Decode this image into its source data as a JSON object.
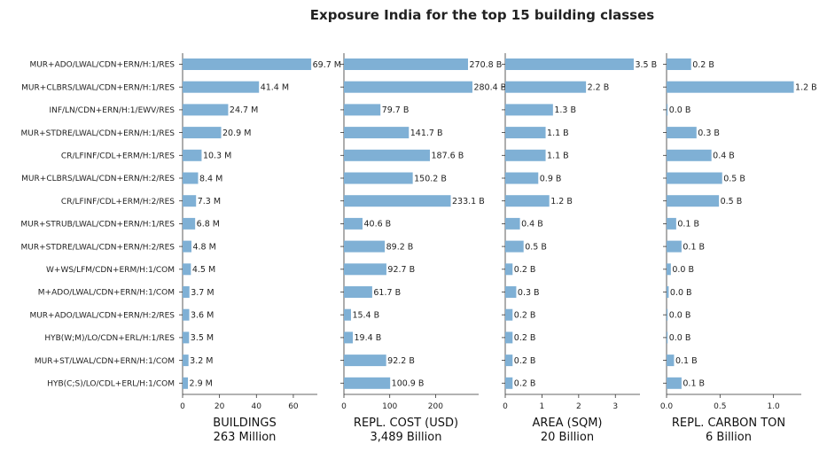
{
  "chart_data": {
    "type": "bar",
    "orientation": "horizontal",
    "title": "Exposure India for the top 15 building classes",
    "categories": [
      "MUR+ADO/LWAL/CDN+ERN/H:1/RES",
      "MUR+CLBRS/LWAL/CDN+ERN/H:1/RES",
      "INF/LN/CDN+ERN/H:1/EWV/RES",
      "MUR+STDRE/LWAL/CDN+ERN/H:1/RES",
      "CR/LFINF/CDL+ERM/H:1/RES",
      "MUR+CLBRS/LWAL/CDN+ERN/H:2/RES",
      "CR/LFINF/CDL+ERM/H:2/RES",
      "MUR+STRUB/LWAL/CDN+ERN/H:1/RES",
      "MUR+STDRE/LWAL/CDN+ERN/H:2/RES",
      "W+WS/LFM/CDN+ERM/H:1/COM",
      "M+ADO/LWAL/CDN+ERN/H:1/COM",
      "MUR+ADO/LWAL/CDN+ERN/H:2/RES",
      "HYB(W;M)/LO/CDN+ERL/H:1/RES",
      "MUR+ST/LWAL/CDN+ERN/H:1/COM",
      "HYB(C;S)/LO/CDL+ERL/H:1/COM"
    ],
    "grid": false,
    "legend": "none",
    "panels": [
      {
        "xlabel": "BUILDINGS",
        "total": "263 Million",
        "xlim": [
          0,
          73
        ],
        "ticks": [
          0,
          20,
          40,
          60
        ],
        "tick_labels": [
          "0",
          "20",
          "40",
          "60"
        ],
        "values": [
          69.7,
          41.4,
          24.7,
          20.9,
          10.3,
          8.4,
          7.3,
          6.8,
          4.8,
          4.5,
          3.7,
          3.6,
          3.5,
          3.2,
          2.9
        ],
        "labels": [
          "69.7 M",
          "41.4 M",
          "24.7 M",
          "20.9 M",
          "10.3 M",
          "8.4 M",
          "7.3 M",
          "6.8 M",
          "4.8 M",
          "4.5 M",
          "3.7 M",
          "3.6 M",
          "3.5 M",
          "3.2 M",
          "2.9 M"
        ]
      },
      {
        "xlabel": "REPL. COST (USD)",
        "total": "3,489 Billion",
        "xlim": [
          0,
          294
        ],
        "ticks": [
          0,
          100,
          200
        ],
        "tick_labels": [
          "0",
          "100",
          "200"
        ],
        "values": [
          270.8,
          280.4,
          79.7,
          141.7,
          187.6,
          150.2,
          233.1,
          40.6,
          89.2,
          92.7,
          61.7,
          15.4,
          19.4,
          92.2,
          100.9
        ],
        "labels": [
          "270.8 B",
          "280.4 B",
          "79.7 B",
          "141.7 B",
          "187.6 B",
          "150.2 B",
          "233.1 B",
          "40.6 B",
          "89.2 B",
          "92.7 B",
          "61.7 B",
          "15.4 B",
          "19.4 B",
          "92.2 B",
          "100.9 B"
        ]
      },
      {
        "xlabel": "AREA (SQM)",
        "total": "20 Billion",
        "xlim": [
          0,
          3.67
        ],
        "ticks": [
          0,
          1,
          2,
          3
        ],
        "tick_labels": [
          "0",
          "1",
          "2",
          "3"
        ],
        "values": [
          3.5,
          2.2,
          1.3,
          1.1,
          1.1,
          0.9,
          1.2,
          0.4,
          0.5,
          0.2,
          0.3,
          0.2,
          0.2,
          0.2,
          0.2
        ],
        "labels": [
          "3.5 B",
          "2.2 B",
          "1.3 B",
          "1.1 B",
          "1.1 B",
          "0.9 B",
          "1.2 B",
          "0.4 B",
          "0.5 B",
          "0.2 B",
          "0.3 B",
          "0.2 B",
          "0.2 B",
          "0.2 B",
          "0.2 B"
        ]
      },
      {
        "xlabel": "REPL. CARBON TON",
        "total": "6 Billion",
        "xlim": [
          0,
          1.26
        ],
        "ticks": [
          0,
          0.5,
          1.0
        ],
        "tick_labels": [
          "0.0",
          "0.5",
          "1.0"
        ],
        "values": [
          0.23,
          1.19,
          0.01,
          0.28,
          0.42,
          0.52,
          0.49,
          0.09,
          0.14,
          0.04,
          0.02,
          0.01,
          0.01,
          0.07,
          0.14
        ],
        "labels": [
          "0.2 B",
          "1.2 B",
          "0.0 B",
          "0.3 B",
          "0.4 B",
          "0.5 B",
          "0.5 B",
          "0.1 B",
          "0.1 B",
          "0.0 B",
          "0.0 B",
          "0.0 B",
          "0.0 B",
          "0.1 B",
          "0.1 B"
        ]
      }
    ],
    "colors": {
      "bar": "#7fb0d5",
      "axis": "#333333",
      "text": "#222222"
    }
  }
}
